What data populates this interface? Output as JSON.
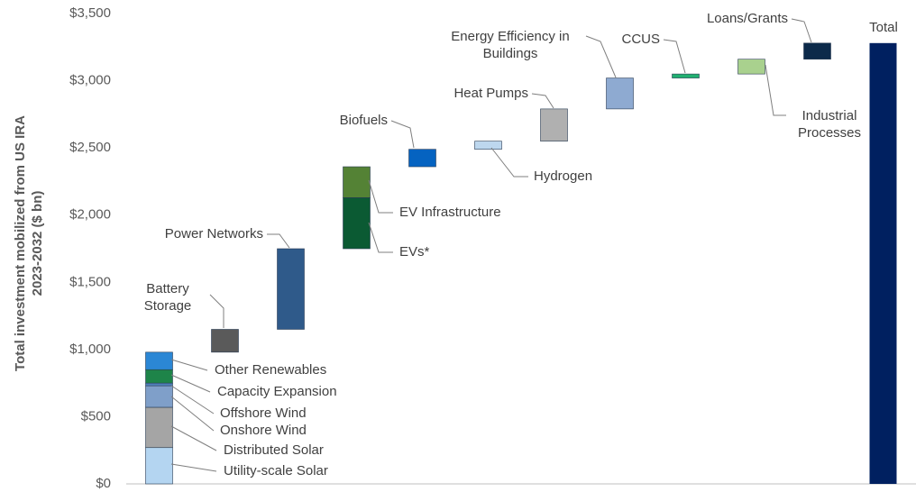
{
  "chart_data": {
    "type": "waterfall",
    "y_label": [
      "Total investment mobilized from US IRA",
      "2023-2032 ($ bn)"
    ],
    "ylim": [
      0,
      3500
    ],
    "yticks": [
      {
        "value": 0,
        "label": "$0"
      },
      {
        "value": 500,
        "label": "$500"
      },
      {
        "value": 1000,
        "label": "$1,000"
      },
      {
        "value": 1500,
        "label": "$1,500"
      },
      {
        "value": 2000,
        "label": "$2,000"
      },
      {
        "value": 2500,
        "label": "$2,500"
      },
      {
        "value": 3000,
        "label": "$3,000"
      },
      {
        "value": 3500,
        "label": "$3,500"
      }
    ],
    "columns": [
      {
        "segments": [
          {
            "name": "Utility-scale Solar",
            "value": 270,
            "color": "#b4d5f1"
          },
          {
            "name": "Distributed Solar",
            "value": 300,
            "color": "#a5a5a5"
          },
          {
            "name": "Onshore Wind",
            "value": 160,
            "color": "#7f9fc9"
          },
          {
            "name": "Offshore Wind",
            "value": 20,
            "color": "#4f7fb9"
          },
          {
            "name": "Capacity Expansion",
            "value": 100,
            "color": "#1e8449"
          },
          {
            "name": "Other Renewables",
            "value": 130,
            "color": "#2b87d5"
          }
        ]
      },
      {
        "segments": [
          {
            "name": "Battery Storage",
            "value": 170,
            "color": "#5a5a5a"
          }
        ]
      },
      {
        "segments": [
          {
            "name": "Power Networks",
            "value": 600,
            "color": "#2f5a8a"
          }
        ]
      },
      {
        "segments": [
          {
            "name": "EVs*",
            "value": 380,
            "color": "#0b5a33"
          },
          {
            "name": "EV Infrastructure",
            "value": 230,
            "color": "#548235"
          }
        ]
      },
      {
        "segments": [
          {
            "name": "Biofuels",
            "value": 130,
            "color": "#0563c1"
          }
        ]
      },
      {
        "segments": [
          {
            "name": "Hydrogen",
            "value": 60,
            "color": "#bdd7ee"
          }
        ]
      },
      {
        "segments": [
          {
            "name": "Heat Pumps",
            "value": 240,
            "color": "#b0b0b0"
          }
        ]
      },
      {
        "segments": [
          {
            "name": "Energy Efficiency in Buildings",
            "value": 230,
            "color": "#8eaad1"
          }
        ]
      },
      {
        "segments": [
          {
            "name": "CCUS",
            "value": 30,
            "color": "#21b070"
          }
        ]
      },
      {
        "segments": [
          {
            "name": "Industrial Processes",
            "value": 110,
            "color": "#a9d18e"
          }
        ]
      },
      {
        "segments": [
          {
            "name": "Loans/Grants",
            "value": 120,
            "color": "#0c2a4a"
          }
        ]
      },
      {
        "segments": [
          {
            "name": "Total",
            "value": 3280,
            "color": "#002060",
            "total": true
          }
        ]
      }
    ]
  }
}
